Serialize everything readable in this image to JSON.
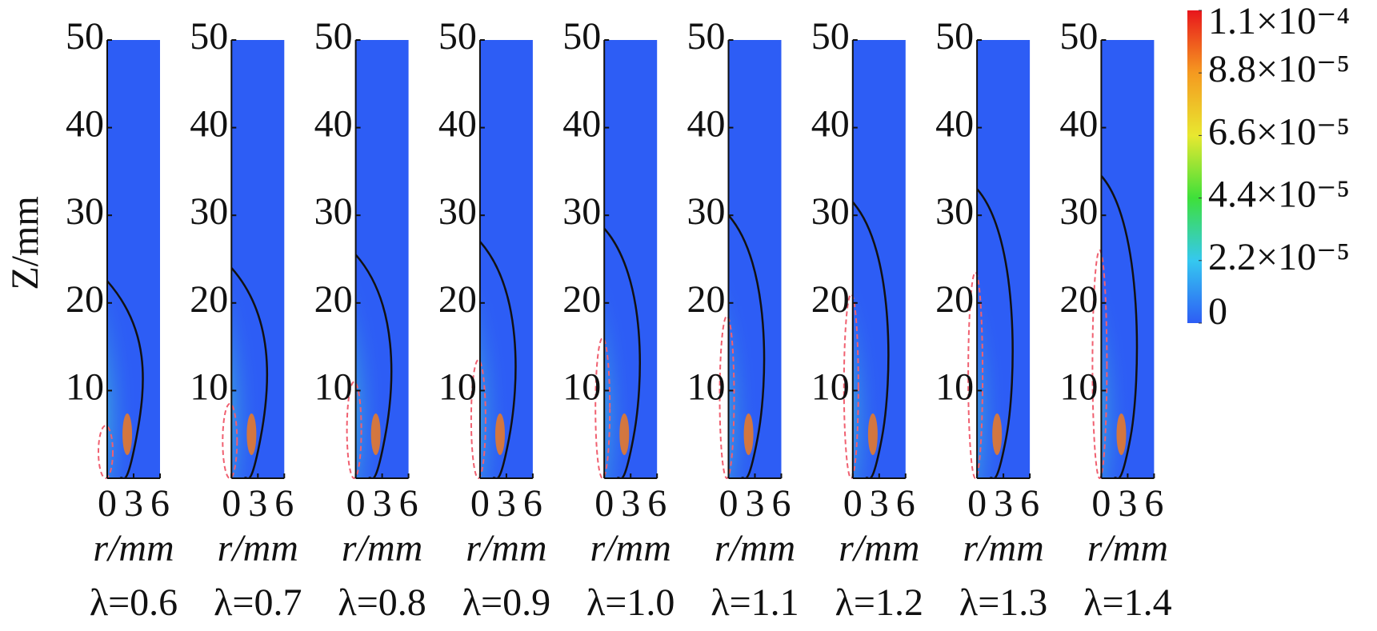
{
  "chart_data": [
    {
      "type": "heatmap",
      "ylabel": "Z/mm",
      "xlabel": "r/mm",
      "title": "λ=0.6",
      "xlim": [
        0,
        6
      ],
      "xticks": [
        0,
        3,
        6
      ],
      "ylim": [
        0,
        50
      ],
      "yticks": [
        10,
        20,
        30,
        40,
        50
      ]
    },
    {
      "type": "heatmap",
      "xlabel": "r/mm",
      "title": "λ=0.7",
      "xlim": [
        0,
        6
      ],
      "xticks": [
        0,
        3,
        6
      ],
      "ylim": [
        0,
        50
      ],
      "yticks": [
        10,
        20,
        30,
        40,
        50
      ]
    },
    {
      "type": "heatmap",
      "xlabel": "r/mm",
      "title": "λ=0.8",
      "xlim": [
        0,
        6
      ],
      "xticks": [
        0,
        3,
        6
      ],
      "ylim": [
        0,
        50
      ],
      "yticks": [
        10,
        20,
        30,
        40,
        50
      ]
    },
    {
      "type": "heatmap",
      "xlabel": "r/mm",
      "title": "λ=0.9",
      "xlim": [
        0,
        6
      ],
      "xticks": [
        0,
        3,
        6
      ],
      "ylim": [
        0,
        50
      ],
      "yticks": [
        10,
        20,
        30,
        40,
        50
      ]
    },
    {
      "type": "heatmap",
      "xlabel": "r/mm",
      "title": "λ=1.0",
      "xlim": [
        0,
        6
      ],
      "xticks": [
        0,
        3,
        6
      ],
      "ylim": [
        0,
        50
      ],
      "yticks": [
        10,
        20,
        30,
        40,
        50
      ]
    },
    {
      "type": "heatmap",
      "xlabel": "r/mm",
      "title": "λ=1.1",
      "xlim": [
        0,
        6
      ],
      "xticks": [
        0,
        3,
        6
      ],
      "ylim": [
        0,
        50
      ],
      "yticks": [
        10,
        20,
        30,
        40,
        50
      ]
    },
    {
      "type": "heatmap",
      "xlabel": "r/mm",
      "title": "λ=1.2",
      "xlim": [
        0,
        6
      ],
      "xticks": [
        0,
        3,
        6
      ],
      "ylim": [
        0,
        50
      ],
      "yticks": [
        10,
        20,
        30,
        40,
        50
      ]
    },
    {
      "type": "heatmap",
      "xlabel": "r/mm",
      "title": "λ=1.3",
      "xlim": [
        0,
        6
      ],
      "xticks": [
        0,
        3,
        6
      ],
      "ylim": [
        0,
        50
      ],
      "yticks": [
        10,
        20,
        30,
        40,
        50
      ]
    },
    {
      "type": "heatmap",
      "xlabel": "r/mm",
      "title": "λ=1.4",
      "xlim": [
        0,
        6
      ],
      "xticks": [
        0,
        3,
        6
      ],
      "ylim": [
        0,
        50
      ],
      "yticks": [
        10,
        20,
        30,
        40,
        50
      ]
    }
  ],
  "colorbar": {
    "lim": [
      0,
      0.00011
    ],
    "colors": [
      "#2d5df5",
      "#35c8f0",
      "#3ee03a",
      "#e8e830",
      "#f59a20",
      "#e8161c"
    ],
    "ticks": [
      0,
      {
        "value": 2.2e-05,
        "label": "2.2×10⁻⁵"
      },
      {
        "value": 4.4e-05,
        "label": "4.4×10⁻⁵"
      },
      {
        "value": 6.6e-05,
        "label": "6.6×10⁻⁵"
      },
      {
        "value": 8.8e-05,
        "label": "8.8×10⁻⁵"
      },
      {
        "value": 0.00011,
        "label": "1.1×10⁻⁴"
      }
    ]
  }
}
